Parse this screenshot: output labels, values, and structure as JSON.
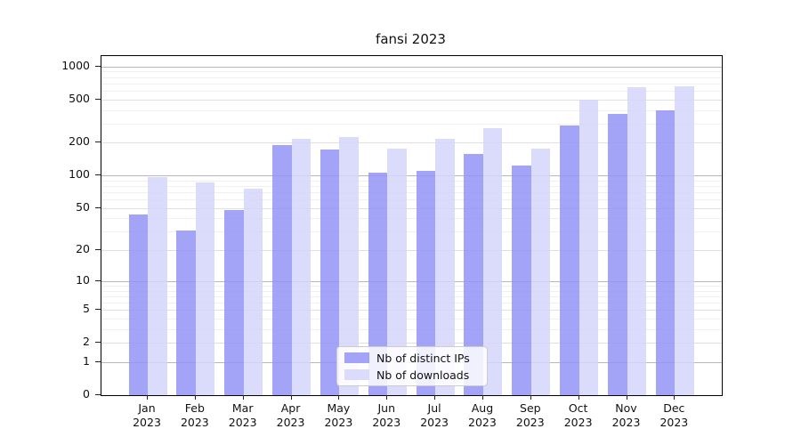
{
  "chart_data": {
    "type": "bar",
    "title": "fansi 2023",
    "y_scale": "log1p",
    "grid": "on",
    "legend_position": "lower-center-inside",
    "categories": [
      "Jan 2023",
      "Feb 2023",
      "Mar 2023",
      "Apr 2023",
      "May 2023",
      "Jun 2023",
      "Jul 2023",
      "Aug 2023",
      "Sep 2023",
      "Oct 2023",
      "Nov 2023",
      "Dec 2023"
    ],
    "series": [
      {
        "name": "Nb of distinct IPs",
        "color": "rgba(147,147,247,0.85)",
        "values": [
          44,
          31,
          48,
          190,
          175,
          106,
          111,
          158,
          124,
          288,
          365,
          400
        ]
      },
      {
        "name": "Nb of downloads",
        "color": "rgba(213,213,250,0.85)",
        "values": [
          97,
          87,
          75,
          217,
          224,
          177,
          219,
          275,
          176,
          497,
          645,
          660
        ]
      }
    ],
    "yticks": {
      "values": [
        0,
        1,
        2,
        5,
        10,
        20,
        50,
        100,
        200,
        500,
        1000
      ],
      "labels": [
        "0",
        "1",
        "2",
        "5",
        "10",
        "20",
        "50",
        "100",
        "200",
        "500",
        "1000"
      ]
    },
    "minor_gridline_values": [
      3,
      4,
      6,
      7,
      8,
      9,
      30,
      40,
      60,
      70,
      80,
      90,
      300,
      400,
      600,
      700,
      800,
      900
    ],
    "decade_values": [
      1,
      10,
      100,
      1000
    ],
    "ylim": [
      0,
      1260
    ],
    "xlabel": "",
    "ylabel": "",
    "colors": {
      "decade_gridline": "#b8b8b8",
      "labeled_gridline": "#e0e0e0",
      "minor_gridline": "#f0f0f0",
      "spine": "#000000",
      "text": "#111111"
    }
  }
}
